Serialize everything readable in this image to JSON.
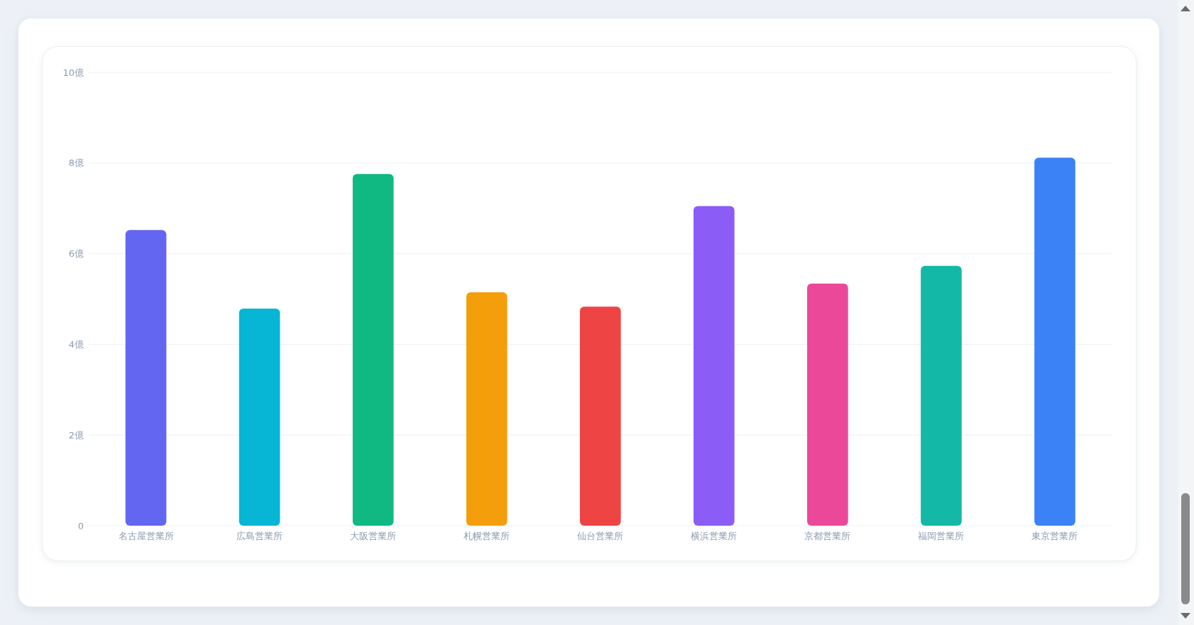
{
  "chart_data": {
    "type": "bar",
    "categories": [
      "名古屋営業所",
      "広島営業所",
      "大阪営業所",
      "札幌営業所",
      "仙台営業所",
      "横浜営業所",
      "京都営業所",
      "福岡営業所",
      "東京営業所"
    ],
    "values": [
      6.52,
      4.79,
      7.76,
      5.15,
      4.83,
      7.05,
      5.34,
      5.73,
      8.12
    ],
    "colors": [
      "#6366f1",
      "#06b6d4",
      "#10b981",
      "#f59e0b",
      "#ef4444",
      "#8b5cf6",
      "#ec4899",
      "#14b8a6",
      "#3b82f6"
    ],
    "ylim": [
      0,
      10
    ],
    "yticks": [
      0,
      {
        "value": 2,
        "label": "2億"
      },
      {
        "value": 4,
        "label": "4億"
      },
      {
        "value": 6,
        "label": "6億"
      },
      {
        "value": 8,
        "label": "8億"
      },
      {
        "value": 10,
        "label": "10億"
      }
    ],
    "grid": "y"
  }
}
